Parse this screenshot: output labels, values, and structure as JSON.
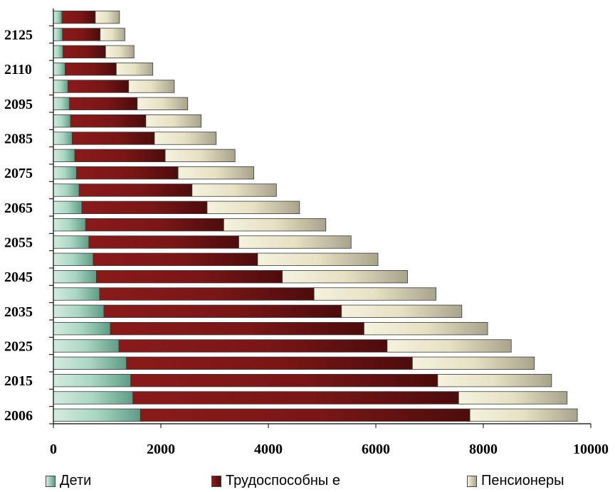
{
  "chart_data": {
    "type": "bar",
    "orientation": "horizontal",
    "stacked": true,
    "categories": [
      "2006",
      "",
      "2015",
      "",
      "2025",
      "",
      "2035",
      "",
      "2045",
      "",
      "2055",
      "",
      "2065",
      "",
      "2075",
      "",
      "2085",
      "",
      "2095",
      "",
      "2110",
      "",
      "2125",
      ""
    ],
    "series": [
      {
        "name": "Дети",
        "color": "#9fd1bf",
        "values": [
          1620,
          1480,
          1440,
          1360,
          1220,
          1060,
          940,
          860,
          800,
          740,
          660,
          600,
          530,
          480,
          430,
          400,
          350,
          320,
          300,
          270,
          220,
          180,
          170,
          160
        ]
      },
      {
        "name": "Трудоспособны е",
        "color": "#8b1a1a",
        "values": [
          6130,
          6060,
          5710,
          5320,
          4990,
          4720,
          4420,
          3990,
          3460,
          3060,
          2790,
          2570,
          2330,
          2100,
          1890,
          1680,
          1530,
          1400,
          1260,
          1130,
          950,
          790,
          700,
          620
        ]
      },
      {
        "name": "Пенсионеры",
        "color": "#e8e3c4",
        "values": [
          2000,
          2020,
          2120,
          2270,
          2310,
          2300,
          2240,
          2270,
          2330,
          2240,
          2090,
          1900,
          1720,
          1570,
          1410,
          1300,
          1150,
          1030,
          940,
          850,
          680,
          530,
          460,
          450
        ]
      }
    ],
    "xticks": [
      "0",
      "2000",
      "4000",
      "6000",
      "8000",
      "10000"
    ],
    "xlim": [
      0,
      10000
    ],
    "grid": false,
    "legend_position": "bottom"
  }
}
